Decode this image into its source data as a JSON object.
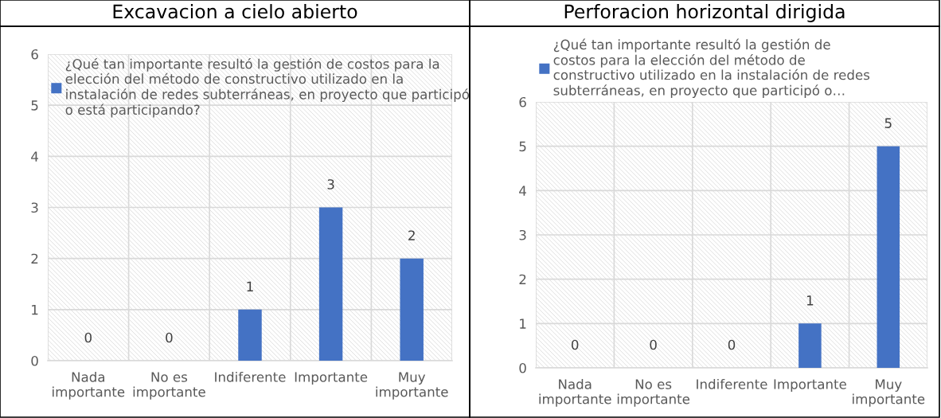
{
  "chart_data": [
    {
      "type": "bar",
      "title": "Excavacion a cielo abierto",
      "categories": [
        "Nada\nimportante",
        "No es\nimportante",
        "Indiferente",
        "Importante",
        "Muy\nimportante"
      ],
      "series": [
        {
          "name": "¿Qué tan importante resultó la gestión de costos para la\nelección del método de constructivo utilizado en la\ninstalación de redes subterráneas, en proyecto que participó\no está participando?",
          "color": "#4472c4",
          "values": [
            0,
            0,
            1,
            3,
            2
          ]
        }
      ],
      "ylim": [
        0,
        6
      ],
      "yticks": [
        0,
        1,
        2,
        3,
        4,
        5,
        6
      ],
      "grid": true,
      "legend": "top left",
      "data_labels": true
    },
    {
      "type": "bar",
      "title": "Perforacion horizontal dirigida",
      "categories": [
        "Nada\nimportante",
        "No es\nimportante",
        "Indiferente",
        "Importante",
        "Muy\nimportante"
      ],
      "series": [
        {
          "name": "¿Qué tan importante resultó la gestión de\ncostos para la elección del método de\nconstructivo utilizado en la instalación de redes\nsubterráneas, en proyecto que participó o…",
          "color": "#4472c4",
          "values": [
            0,
            0,
            0,
            1,
            5
          ]
        }
      ],
      "ylim": [
        0,
        6
      ],
      "yticks": [
        0,
        1,
        2,
        3,
        4,
        5,
        6
      ],
      "grid": true,
      "legend": "top",
      "data_labels": true
    }
  ]
}
